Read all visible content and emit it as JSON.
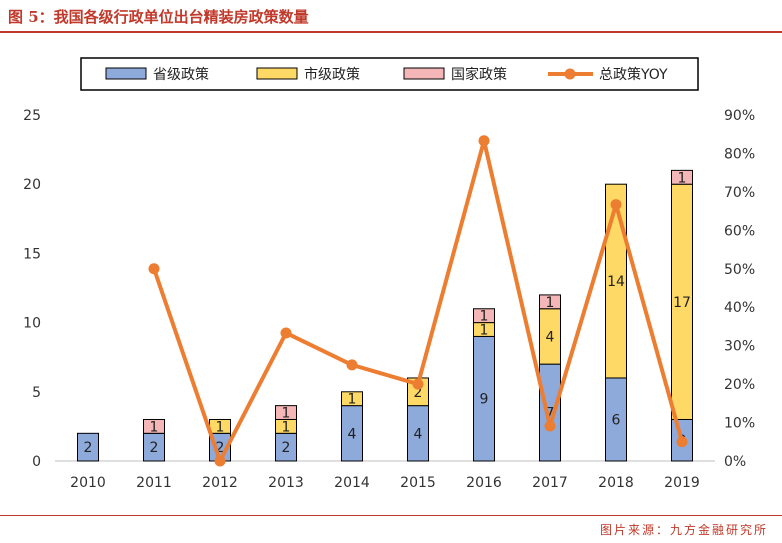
{
  "page": {
    "title": "图 5：我国各级行政单位出台精装房政策数量",
    "source": "图片来源：九方金融研究所"
  },
  "colors": {
    "title": "#c0392b",
    "provincial": "#8eaadb",
    "city": "#ffd966",
    "national": "#f4b6b6",
    "yoy": "#ed7d31",
    "bar_border": "#000000"
  },
  "chart_data": {
    "type": "bar",
    "stacked": true,
    "categories": [
      "2010",
      "2011",
      "2012",
      "2013",
      "2014",
      "2015",
      "2016",
      "2017",
      "2018",
      "2019"
    ],
    "series": [
      {
        "name": "省级政策",
        "values": [
          2,
          2,
          2,
          2,
          4,
          4,
          9,
          7,
          6,
          3
        ]
      },
      {
        "name": "市级政策",
        "values": [
          0,
          0,
          1,
          1,
          1,
          2,
          1,
          4,
          14,
          17
        ]
      },
      {
        "name": "国家政策",
        "values": [
          0,
          1,
          0,
          1,
          0,
          0,
          1,
          1,
          0,
          1
        ]
      }
    ],
    "line_series": {
      "name": "总政策YOY",
      "axis": "right",
      "values": [
        null,
        0.5,
        0.0,
        0.333,
        0.25,
        0.2,
        0.833,
        0.091,
        0.667,
        0.05
      ]
    },
    "y_left": {
      "min": 0,
      "max": 25,
      "ticks": [
        "0",
        "5",
        "10",
        "15",
        "20",
        "25"
      ]
    },
    "y_right": {
      "min": 0,
      "max": 0.9,
      "ticks": [
        "0%",
        "10%",
        "20%",
        "30%",
        "40%",
        "50%",
        "60%",
        "70%",
        "80%",
        "90%"
      ]
    },
    "legend_position": "top",
    "grid": false
  }
}
